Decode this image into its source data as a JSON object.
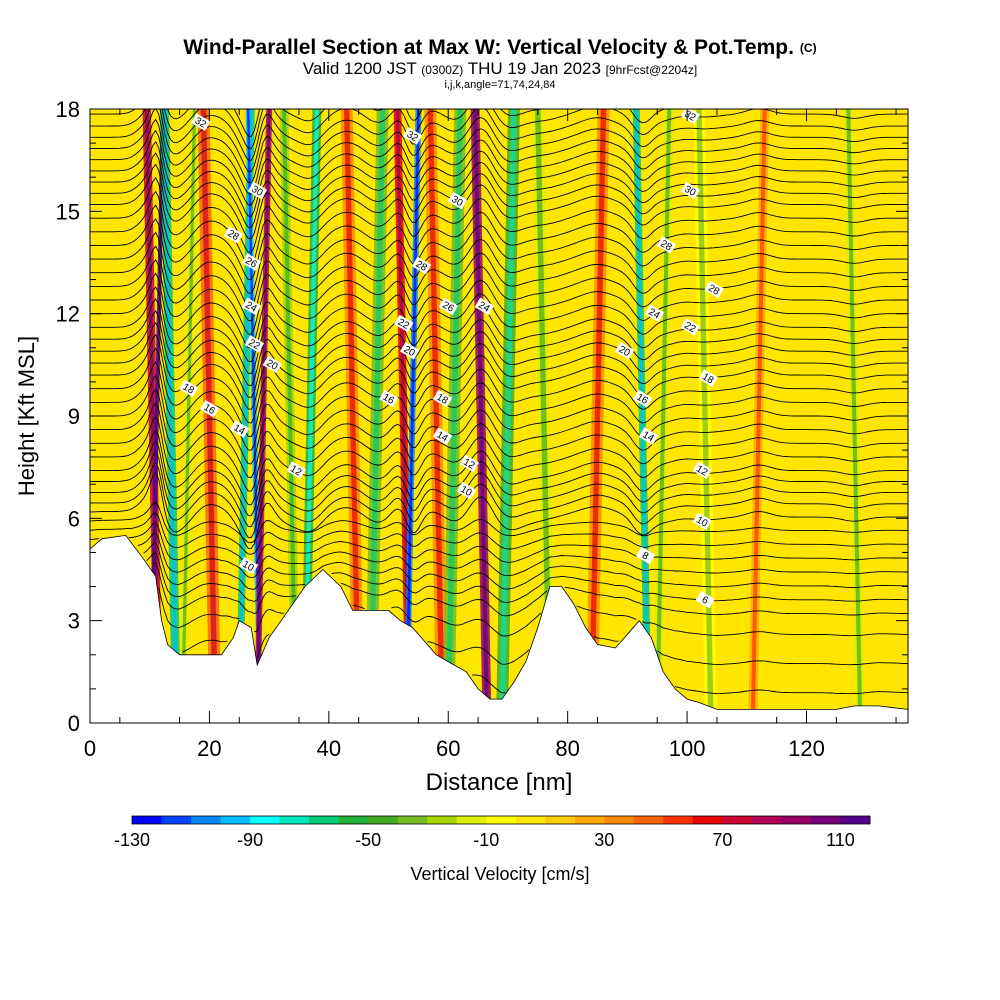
{
  "chart_data": {
    "type": "heatmap",
    "title": "Wind-Parallel Section at Max W: Vertical Velocity & Pot.Temp.",
    "title_mark": "(C)",
    "subtitle": {
      "valid": "Valid 1200 JST",
      "utc": "(0300Z)",
      "date": "THU 19 Jan 2023",
      "fcst": "[9hrFcst@2204z]"
    },
    "params": "i,j,k,angle=71,74,24,84",
    "xlabel": "Distance [nm]",
    "ylabel": "Height [Kft MSL]",
    "xlim": [
      0,
      137
    ],
    "ylim": [
      0,
      18
    ],
    "x_ticks": [
      0,
      20,
      40,
      60,
      80,
      100,
      120
    ],
    "y_ticks": [
      0,
      3,
      6,
      9,
      12,
      15,
      18
    ],
    "colorbar": {
      "label": "Vertical Velocity [cm/s]",
      "ticks": [
        -130,
        -90,
        -50,
        -10,
        30,
        70,
        110
      ],
      "range": [
        -130,
        120
      ],
      "colors": [
        "#0000ff",
        "#0044ff",
        "#0088ff",
        "#00bbff",
        "#00ffff",
        "#00e6bb",
        "#00cc77",
        "#22b33a",
        "#44aa22",
        "#77bb22",
        "#aad400",
        "#ddee00",
        "#ffff00",
        "#ffe600",
        "#ffcc00",
        "#ffaa00",
        "#ff8800",
        "#ff6600",
        "#ff3300",
        "#e60000",
        "#cc0033",
        "#b30055",
        "#990066",
        "#770077",
        "#550088"
      ]
    },
    "vertical_velocity_bands": [
      {
        "x": 10.5,
        "w": 1.4,
        "v": 70
      },
      {
        "x": 11.2,
        "w": 0.7,
        "v": 110
      },
      {
        "x": 13.5,
        "w": 1.5,
        "v": -70
      },
      {
        "x": 16.5,
        "w": 1.2,
        "v": -20
      },
      {
        "x": 20.0,
        "w": 2.0,
        "v": 40
      },
      {
        "x": 26.0,
        "w": 1.2,
        "v": -70
      },
      {
        "x": 27.5,
        "w": 0.9,
        "v": -100
      },
      {
        "x": 29.0,
        "w": 1.0,
        "v": 80
      },
      {
        "x": 33.5,
        "w": 1.5,
        "v": -30
      },
      {
        "x": 37.0,
        "w": 1.5,
        "v": -60
      },
      {
        "x": 44.0,
        "w": 2.0,
        "v": 30
      },
      {
        "x": 48.0,
        "w": 2.0,
        "v": -40
      },
      {
        "x": 52.5,
        "w": 1.3,
        "v": 60
      },
      {
        "x": 54.0,
        "w": 1.0,
        "v": -110
      },
      {
        "x": 58.0,
        "w": 2.0,
        "v": 30
      },
      {
        "x": 61.0,
        "w": 2.0,
        "v": -40
      },
      {
        "x": 65.5,
        "w": 1.5,
        "v": 90
      },
      {
        "x": 70.0,
        "w": 2.0,
        "v": -50
      },
      {
        "x": 76.0,
        "w": 2.0,
        "v": -20
      },
      {
        "x": 85.0,
        "w": 2.0,
        "v": 30
      },
      {
        "x": 92.5,
        "w": 1.2,
        "v": -70
      },
      {
        "x": 96.0,
        "w": 1.5,
        "v": -20
      },
      {
        "x": 103.0,
        "w": 2.0,
        "v": -10
      },
      {
        "x": 112.0,
        "w": 1.5,
        "v": 20
      },
      {
        "x": 128.0,
        "w": 1.5,
        "v": -15
      }
    ],
    "terrain": [
      [
        0,
        5.1
      ],
      [
        2,
        5.4
      ],
      [
        6,
        5.5
      ],
      [
        9,
        4.8
      ],
      [
        11,
        4.3
      ],
      [
        12,
        3.0
      ],
      [
        13,
        2.3
      ],
      [
        15,
        2.0
      ],
      [
        18,
        2.0
      ],
      [
        22,
        2.0
      ],
      [
        24,
        2.5
      ],
      [
        25,
        3.0
      ],
      [
        27,
        2.8
      ],
      [
        28,
        1.7
      ],
      [
        30,
        2.5
      ],
      [
        32,
        3.0
      ],
      [
        34,
        3.5
      ],
      [
        36,
        4.0
      ],
      [
        39,
        4.5
      ],
      [
        42,
        4.0
      ],
      [
        44,
        3.3
      ],
      [
        47,
        3.3
      ],
      [
        50,
        3.3
      ],
      [
        52,
        3.0
      ],
      [
        54,
        2.8
      ],
      [
        56,
        2.4
      ],
      [
        58,
        2.0
      ],
      [
        60,
        1.8
      ],
      [
        63,
        1.5
      ],
      [
        65,
        1.0
      ],
      [
        67,
        0.7
      ],
      [
        69,
        0.7
      ],
      [
        71,
        1.2
      ],
      [
        73,
        1.8
      ],
      [
        75,
        2.8
      ],
      [
        77,
        4.0
      ],
      [
        79,
        4.0
      ],
      [
        81,
        3.5
      ],
      [
        83,
        2.8
      ],
      [
        85,
        2.3
      ],
      [
        88,
        2.2
      ],
      [
        90,
        2.6
      ],
      [
        92,
        3.0
      ],
      [
        94,
        2.5
      ],
      [
        96,
        1.5
      ],
      [
        98,
        1.0
      ],
      [
        100,
        0.7
      ],
      [
        102,
        0.6
      ],
      [
        105,
        0.4
      ],
      [
        110,
        0.4
      ],
      [
        120,
        0.4
      ],
      [
        125,
        0.4
      ],
      [
        128,
        0.5
      ],
      [
        132,
        0.5
      ],
      [
        137,
        0.4
      ]
    ],
    "theta_contours": [
      {
        "label": "6",
        "base": 3.8
      },
      {
        "label": "8",
        "base": 4.8
      },
      {
        "label": "10",
        "base": 5.8
      },
      {
        "label": "12",
        "base": 7.4
      },
      {
        "label": "14",
        "base": 8.6
      },
      {
        "label": "16",
        "base": 9.4
      },
      {
        "label": "18",
        "base": 10.2
      },
      {
        "label": "20",
        "base": 10.9
      },
      {
        "label": "22",
        "base": 11.6
      },
      {
        "label": "24",
        "base": 12.4
      },
      {
        "label": "26",
        "base": 13.2
      },
      {
        "label": "28",
        "base": 14.0
      },
      {
        "label": "30",
        "base": 15.2
      },
      {
        "label": "32",
        "base": 17.5
      }
    ],
    "theta_labels": [
      {
        "text": "32",
        "x": 18.5,
        "y": 17.6
      },
      {
        "text": "32",
        "x": 54.0,
        "y": 17.2
      },
      {
        "text": "32",
        "x": 100.5,
        "y": 17.8
      },
      {
        "text": "30",
        "x": 28.0,
        "y": 15.6
      },
      {
        "text": "30",
        "x": 61.5,
        "y": 15.3
      },
      {
        "text": "30",
        "x": 100.5,
        "y": 15.6
      },
      {
        "text": "28",
        "x": 24.0,
        "y": 14.3
      },
      {
        "text": "28",
        "x": 55.5,
        "y": 13.4
      },
      {
        "text": "28",
        "x": 96.5,
        "y": 14.0
      },
      {
        "text": "28",
        "x": 104.5,
        "y": 12.7
      },
      {
        "text": "26",
        "x": 27.0,
        "y": 13.5
      },
      {
        "text": "26",
        "x": 60.0,
        "y": 12.2
      },
      {
        "text": "24",
        "x": 27.0,
        "y": 12.2
      },
      {
        "text": "24",
        "x": 66.0,
        "y": 12.2
      },
      {
        "text": "24",
        "x": 94.5,
        "y": 12.0
      },
      {
        "text": "22",
        "x": 27.5,
        "y": 11.1
      },
      {
        "text": "22",
        "x": 52.5,
        "y": 11.7
      },
      {
        "text": "22",
        "x": 100.5,
        "y": 11.6
      },
      {
        "text": "20",
        "x": 30.5,
        "y": 10.5
      },
      {
        "text": "20",
        "x": 53.5,
        "y": 10.9
      },
      {
        "text": "20",
        "x": 89.5,
        "y": 10.9
      },
      {
        "text": "18",
        "x": 16.5,
        "y": 9.8
      },
      {
        "text": "18",
        "x": 59.0,
        "y": 9.5
      },
      {
        "text": "18",
        "x": 103.5,
        "y": 10.1
      },
      {
        "text": "16",
        "x": 20.0,
        "y": 9.2
      },
      {
        "text": "16",
        "x": 50.0,
        "y": 9.5
      },
      {
        "text": "16",
        "x": 92.5,
        "y": 9.5
      },
      {
        "text": "14",
        "x": 25.0,
        "y": 8.6
      },
      {
        "text": "14",
        "x": 59.0,
        "y": 8.4
      },
      {
        "text": "14",
        "x": 93.5,
        "y": 8.4
      },
      {
        "text": "12",
        "x": 34.5,
        "y": 7.4
      },
      {
        "text": "12",
        "x": 63.5,
        "y": 7.6
      },
      {
        "text": "12",
        "x": 102.5,
        "y": 7.4
      },
      {
        "text": "10",
        "x": 63.0,
        "y": 6.8
      },
      {
        "text": "10",
        "x": 102.5,
        "y": 5.9
      },
      {
        "text": "10",
        "x": 26.5,
        "y": 4.6
      },
      {
        "text": "8",
        "x": 93.0,
        "y": 4.9
      },
      {
        "text": "6",
        "x": 103.0,
        "y": 3.6
      }
    ]
  }
}
